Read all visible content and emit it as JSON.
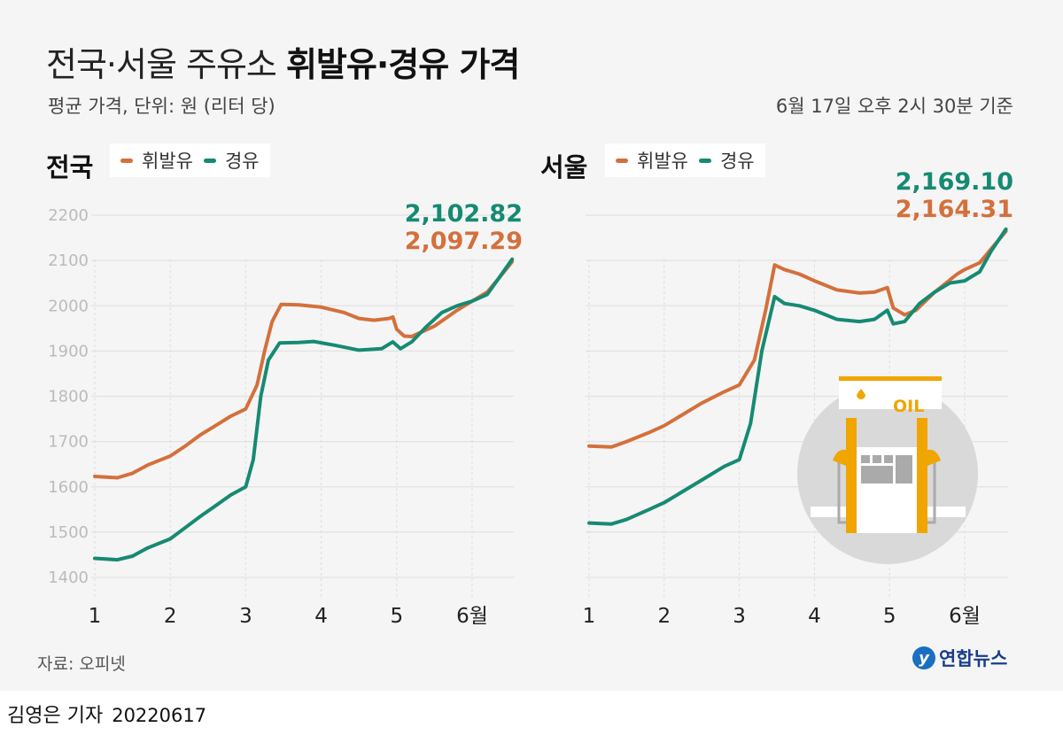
{
  "title": {
    "light": "전국·서울 주유소 ",
    "bold": "휘발유·경유 가격"
  },
  "subtitle": "평균 가격, 단위: 원 (리터 당)",
  "basis": "6월 17일 오후 2시 30분 기준",
  "source": "자료: 오피넷",
  "byline": {
    "author": "김영은 기자",
    "date": "20220617"
  },
  "logo": {
    "mark": "y",
    "text": "연합뉴스"
  },
  "colors": {
    "gasoline": "#d4703c",
    "diesel": "#168a72",
    "background": "#f5f5f5"
  },
  "icon": "gas-pump-oil-icon",
  "icon_text": "OIL",
  "chart_data": [
    {
      "type": "line",
      "title": "전국",
      "legend": [
        "휘발유",
        "경유"
      ],
      "x_ticks": [
        "1",
        "2",
        "3",
        "4",
        "5",
        "6월"
      ],
      "y_ticks": [
        "2200",
        "2100",
        "2000",
        "1900",
        "1800",
        "1700",
        "1600",
        "1500",
        "1400"
      ],
      "ylim": [
        1400,
        2200
      ],
      "grid": true,
      "end_labels": {
        "diesel": "2,102.82",
        "gasoline": "2,097.29"
      },
      "series": [
        {
          "name": "휘발유",
          "key": "gasoline",
          "x": [
            1.0,
            1.3,
            1.5,
            1.7,
            2.0,
            2.2,
            2.4,
            2.6,
            2.8,
            3.0,
            3.15,
            3.25,
            3.35,
            3.47,
            3.7,
            4.0,
            4.3,
            4.5,
            4.7,
            4.9,
            4.95,
            5.0,
            5.1,
            5.2,
            5.5,
            5.8,
            6.0,
            6.2,
            6.35,
            6.53
          ],
          "y": [
            1623,
            1620,
            1630,
            1648,
            1668,
            1690,
            1715,
            1735,
            1756,
            1772,
            1825,
            1900,
            1965,
            2003,
            2002,
            1997,
            1985,
            1972,
            1968,
            1972,
            1975,
            1948,
            1933,
            1932,
            1955,
            1990,
            2010,
            2030,
            2060,
            2097.29
          ]
        },
        {
          "name": "경유",
          "key": "diesel",
          "x": [
            1.0,
            1.3,
            1.5,
            1.7,
            2.0,
            2.2,
            2.4,
            2.6,
            2.8,
            3.0,
            3.1,
            3.2,
            3.3,
            3.45,
            3.7,
            3.9,
            4.2,
            4.5,
            4.8,
            4.95,
            5.05,
            5.2,
            5.4,
            5.6,
            5.8,
            6.0,
            6.2,
            6.35,
            6.53
          ],
          "y": [
            1442,
            1439,
            1447,
            1465,
            1485,
            1510,
            1535,
            1558,
            1582,
            1600,
            1660,
            1800,
            1880,
            1918,
            1919,
            1921,
            1912,
            1902,
            1905,
            1920,
            1905,
            1920,
            1955,
            1985,
            2000,
            2010,
            2025,
            2060,
            2102.82
          ]
        }
      ]
    },
    {
      "type": "line",
      "title": "서울",
      "legend": [
        "휘발유",
        "경유"
      ],
      "x_ticks": [
        "1",
        "2",
        "3",
        "4",
        "5",
        "6월"
      ],
      "ylim": [
        1400,
        2200
      ],
      "grid": true,
      "end_labels": {
        "diesel": "2,169.10",
        "gasoline": "2,164.31"
      },
      "series": [
        {
          "name": "휘발유",
          "key": "gasoline",
          "x": [
            1.0,
            1.3,
            1.5,
            1.8,
            2.0,
            2.2,
            2.5,
            2.8,
            3.0,
            3.2,
            3.35,
            3.47,
            3.6,
            3.8,
            4.0,
            4.3,
            4.6,
            4.8,
            4.97,
            5.05,
            5.2,
            5.35,
            5.6,
            5.9,
            6.0,
            6.2,
            6.35,
            6.55
          ],
          "y": [
            1690,
            1688,
            1700,
            1720,
            1735,
            1755,
            1785,
            1810,
            1825,
            1880,
            1990,
            2090,
            2080,
            2070,
            2055,
            2035,
            2028,
            2030,
            2040,
            1995,
            1980,
            1990,
            2030,
            2070,
            2080,
            2095,
            2125,
            2164.31
          ]
        },
        {
          "name": "경유",
          "key": "diesel",
          "x": [
            1.0,
            1.3,
            1.5,
            1.8,
            2.0,
            2.2,
            2.5,
            2.8,
            3.0,
            3.15,
            3.3,
            3.47,
            3.6,
            3.8,
            4.0,
            4.3,
            4.6,
            4.8,
            4.97,
            5.05,
            5.2,
            5.4,
            5.6,
            5.8,
            6.0,
            6.2,
            6.35,
            6.55
          ],
          "y": [
            1520,
            1518,
            1528,
            1550,
            1565,
            1585,
            1615,
            1645,
            1660,
            1740,
            1900,
            2020,
            2005,
            2000,
            1990,
            1970,
            1965,
            1970,
            1990,
            1960,
            1965,
            2005,
            2030,
            2050,
            2055,
            2075,
            2120,
            2169.1
          ]
        }
      ]
    }
  ]
}
